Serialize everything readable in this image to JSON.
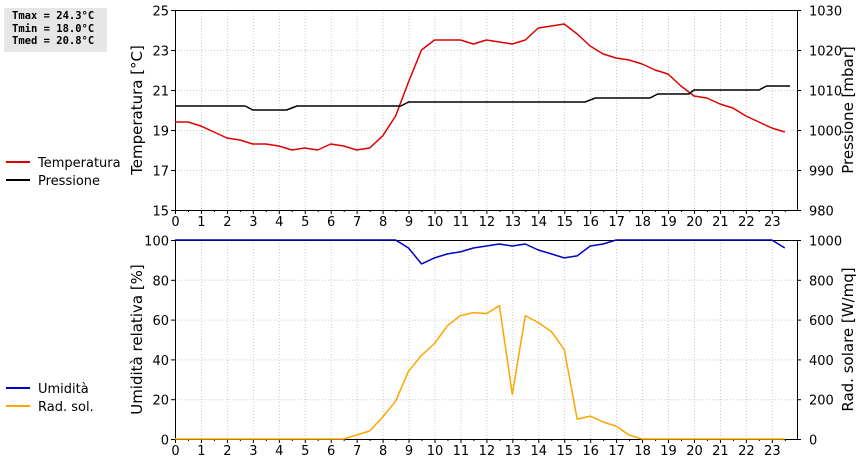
{
  "stats": {
    "tmax": "Tmax = 24.3°C",
    "tmin": "Tmin = 18.0°C",
    "tmed": "Tmed = 20.8°C"
  },
  "colors": {
    "temperature": "#dd0000",
    "pressure": "#000000",
    "humidity": "#0000cc",
    "radiation": "#ffa500",
    "grid": "#c8c8c8"
  },
  "chart_data": [
    {
      "type": "line",
      "ylabel": "Temperatura [°C]",
      "y2label": "Pressione [mbar]",
      "xlim": [
        0,
        24
      ],
      "ylim": [
        15,
        25
      ],
      "y2lim": [
        980,
        1030
      ],
      "xticks": [
        "0",
        "1",
        "2",
        "3",
        "4",
        "5",
        "6",
        "7",
        "8",
        "9",
        "10",
        "11",
        "12",
        "13",
        "14",
        "15",
        "16",
        "17",
        "18",
        "19",
        "20",
        "21",
        "22",
        "23"
      ],
      "yticks": [
        "15",
        "17",
        "19",
        "21",
        "23",
        "25"
      ],
      "y2ticks": [
        "980",
        "990",
        "1000",
        "1010",
        "1020",
        "1030"
      ],
      "grid": true,
      "series": [
        {
          "name": "Temperatura",
          "axis": "left",
          "x": [
            0,
            0.5,
            1,
            1.5,
            2,
            2.5,
            3,
            3.5,
            4,
            4.5,
            5,
            5.5,
            6,
            6.5,
            7,
            7.5,
            8,
            8.5,
            9,
            9.5,
            10,
            10.5,
            11,
            11.5,
            12,
            12.5,
            13,
            13.5,
            14,
            14.5,
            15,
            15.5,
            16,
            16.5,
            17,
            17.5,
            18,
            18.5,
            19,
            19.5,
            20,
            20.5,
            21,
            21.5,
            22,
            22.5,
            23,
            23.5
          ],
          "y": [
            19.4,
            19.4,
            19.2,
            18.9,
            18.6,
            18.5,
            18.3,
            18.3,
            18.2,
            18.0,
            18.1,
            18.0,
            18.3,
            18.2,
            18.0,
            18.1,
            18.7,
            19.7,
            21.4,
            23.0,
            23.5,
            23.5,
            23.5,
            23.3,
            23.5,
            23.4,
            23.3,
            23.5,
            24.1,
            24.2,
            24.3,
            23.8,
            23.2,
            22.8,
            22.6,
            22.5,
            22.3,
            22.0,
            21.8,
            21.2,
            20.7,
            20.6,
            20.3,
            20.1,
            19.7,
            19.4,
            19.1,
            18.9
          ]
        },
        {
          "name": "Pressione",
          "axis": "right",
          "x": [
            0,
            2.7,
            3,
            4.3,
            4.7,
            8.7,
            9,
            15.8,
            16.2,
            18.3,
            18.6,
            19.8,
            20,
            22.5,
            22.8,
            23.7
          ],
          "y": [
            1006,
            1006,
            1005,
            1005,
            1006,
            1006,
            1007,
            1007,
            1008,
            1008,
            1009,
            1009,
            1010,
            1010,
            1011,
            1011
          ]
        }
      ]
    },
    {
      "type": "line",
      "ylabel": "Umidità relativa [%]",
      "y2label": "Rad. solare [W/mq]",
      "xlim": [
        0,
        24
      ],
      "ylim": [
        0,
        100
      ],
      "y2lim": [
        0,
        1000
      ],
      "xticks": [
        "0",
        "1",
        "2",
        "3",
        "4",
        "5",
        "6",
        "7",
        "8",
        "9",
        "10",
        "11",
        "12",
        "13",
        "14",
        "15",
        "16",
        "17",
        "18",
        "19",
        "20",
        "21",
        "22",
        "23"
      ],
      "yticks": [
        "0",
        "20",
        "40",
        "60",
        "80",
        "100"
      ],
      "y2ticks": [
        "0",
        "200",
        "400",
        "600",
        "800",
        "1000"
      ],
      "grid": true,
      "series": [
        {
          "name": "Umidità",
          "axis": "left",
          "x": [
            0,
            8.5,
            9,
            9.5,
            10,
            10.5,
            11,
            11.5,
            12,
            12.5,
            13,
            13.5,
            14,
            14.5,
            15,
            15.5,
            16,
            16.5,
            17,
            17.5,
            18,
            18.5,
            19,
            19.5,
            20,
            20.5,
            21,
            21.5,
            22,
            22.5,
            23,
            23.5
          ],
          "y": [
            100,
            100,
            96,
            88,
            91,
            93,
            94,
            96,
            97,
            98,
            97,
            98,
            95,
            93,
            91,
            92,
            97,
            98,
            100,
            100,
            100,
            100,
            100,
            100,
            100,
            100,
            100,
            100,
            100,
            100,
            100,
            96
          ]
        },
        {
          "name": "Rad. sol.",
          "axis": "right",
          "x": [
            0,
            6.5,
            7,
            7.5,
            8,
            8.5,
            9,
            9.5,
            10,
            10.5,
            11,
            11.5,
            12,
            12.5,
            13,
            13.5,
            14,
            14.5,
            15,
            15.5,
            16,
            16.5,
            17,
            17.5,
            18,
            18.5,
            19,
            19.5,
            20,
            20.5,
            21,
            21.5,
            22,
            22.5,
            23,
            23.5
          ],
          "y": [
            0,
            0,
            20,
            40,
            110,
            190,
            340,
            420,
            480,
            570,
            620,
            635,
            630,
            670,
            225,
            620,
            585,
            540,
            450,
            100,
            115,
            85,
            65,
            20,
            0,
            0,
            0,
            0,
            0,
            0,
            0,
            0,
            0,
            0,
            0,
            0
          ]
        }
      ]
    }
  ]
}
